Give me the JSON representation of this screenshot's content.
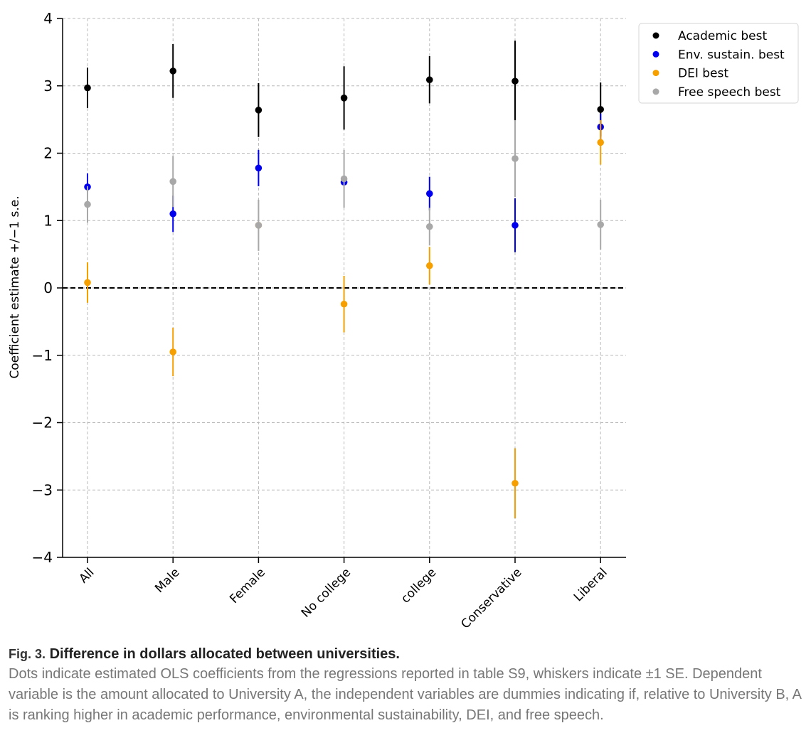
{
  "chart_data": {
    "type": "scatter",
    "ylabel": "Coefficient estimate +/−1 s.e.",
    "xlabel": "",
    "ylim": [
      -4,
      4
    ],
    "yticks": [
      "−4",
      "−3",
      "−2",
      "−1",
      "0",
      "1",
      "2",
      "3",
      "4"
    ],
    "ytick_values": [
      -4,
      -3,
      -2,
      -1,
      0,
      1,
      2,
      3,
      4
    ],
    "categories": [
      "All",
      "Male",
      "Female",
      "No college",
      "college",
      "Conservative",
      "Liberal"
    ],
    "grid": true,
    "zero_line": true,
    "legend_position": "top-right",
    "series": [
      {
        "name": "Academic best",
        "color": "#000000",
        "values": [
          2.97,
          3.22,
          2.64,
          2.82,
          3.09,
          3.07,
          2.65
        ],
        "se": [
          0.3,
          0.4,
          0.4,
          0.47,
          0.35,
          0.6,
          0.4
        ]
      },
      {
        "name": "Env. sustain. best",
        "color": "#0000ee",
        "values": [
          1.5,
          1.1,
          1.78,
          1.57,
          1.4,
          0.93,
          2.39
        ],
        "se": [
          0.2,
          0.27,
          0.27,
          0.05,
          0.25,
          0.4,
          0.2
        ]
      },
      {
        "name": "DEI best",
        "color": "#f5a000",
        "values": [
          0.08,
          -0.95,
          0.93,
          -0.24,
          0.33,
          -2.9,
          2.16
        ],
        "se": [
          0.3,
          0.36,
          0.05,
          0.42,
          0.28,
          0.52,
          0.33
        ]
      },
      {
        "name": "Free speech best",
        "color": "#a8a8a8",
        "values": [
          1.24,
          1.58,
          0.93,
          1.62,
          0.91,
          1.92,
          0.94
        ],
        "se": [
          0.27,
          0.38,
          0.38,
          0.43,
          0.28,
          0.57,
          0.37
        ]
      }
    ]
  },
  "caption": {
    "fig_label": "Fig. 3.",
    "title": "Difference in dollars allocated between universities.",
    "body": "Dots indicate estimated OLS coefficients from the regressions reported in table S9, whiskers indicate ±1 SE. Dependent variable is the amount allocated to University A, the independent variables are dummies indicating if, relative to University B, A is ranking higher in academic performance, environmental sustainability, DEI, and free speech."
  }
}
